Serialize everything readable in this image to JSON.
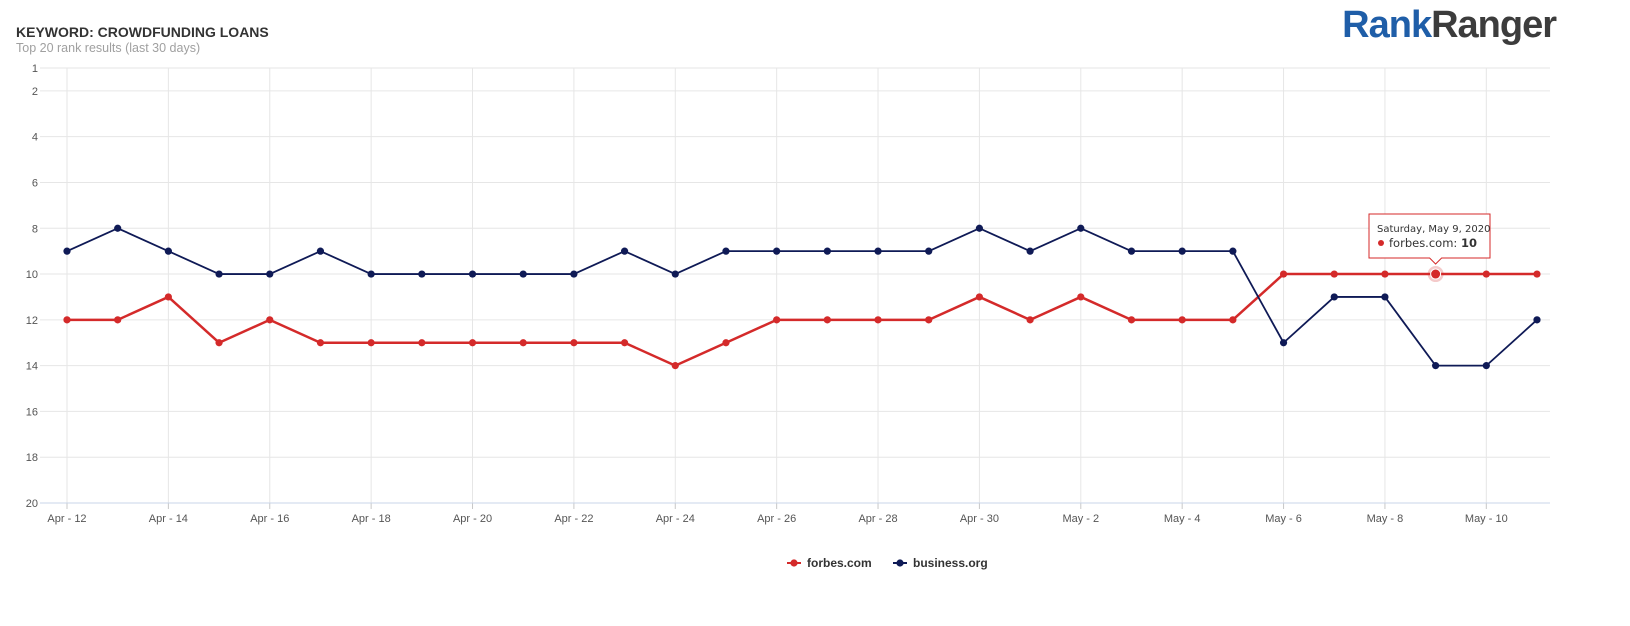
{
  "header": {
    "title": "KEYWORD: CROWDFUNDING LOANS",
    "subtitle": "Top 20 rank results (last 30 days)"
  },
  "logo": {
    "part1": "Rank",
    "part2": "Ranger"
  },
  "chart_data": {
    "type": "line",
    "x": [
      "Apr 12",
      "Apr 13",
      "Apr 14",
      "Apr 15",
      "Apr 16",
      "Apr 17",
      "Apr 18",
      "Apr 19",
      "Apr 20",
      "Apr 21",
      "Apr 22",
      "Apr 23",
      "Apr 24",
      "Apr 25",
      "Apr 26",
      "Apr 27",
      "Apr 28",
      "Apr 29",
      "Apr 30",
      "May 1",
      "May 2",
      "May 3",
      "May 4",
      "May 5",
      "May 6",
      "May 7",
      "May 8",
      "May 9",
      "May 10",
      "May 11"
    ],
    "x_tick_labels": [
      "Apr - 12",
      "Apr - 14",
      "Apr - 16",
      "Apr - 18",
      "Apr - 20",
      "Apr - 22",
      "Apr - 24",
      "Apr - 26",
      "Apr - 28",
      "Apr - 30",
      "May - 2",
      "May - 4",
      "May - 6",
      "May - 8",
      "May - 10"
    ],
    "y_ticks": [
      1,
      2,
      4,
      6,
      8,
      10,
      12,
      14,
      16,
      18,
      20
    ],
    "ylim": [
      1,
      20
    ],
    "y_reversed": true,
    "grid": true,
    "legend_position": "bottom-center",
    "series": [
      {
        "name": "forbes.com",
        "color": "#d42a2a",
        "values": [
          12,
          12,
          11,
          13,
          12,
          13,
          13,
          13,
          13,
          13,
          13,
          13,
          14,
          13,
          12,
          12,
          12,
          12,
          11,
          12,
          11,
          12,
          12,
          12,
          10,
          10,
          10,
          10,
          10,
          10
        ]
      },
      {
        "name": "business.org",
        "color": "#0f1a56",
        "values": [
          9,
          8,
          9,
          10,
          10,
          9,
          10,
          10,
          10,
          10,
          10,
          9,
          10,
          9,
          9,
          9,
          9,
          9,
          8,
          9,
          8,
          9,
          9,
          9,
          13,
          11,
          11,
          14,
          14,
          12
        ]
      }
    ],
    "tooltip": {
      "date": "Saturday, May 9, 2020",
      "series": "forbes.com",
      "label": "forbes.com: ",
      "value": "10",
      "index": 27
    }
  }
}
